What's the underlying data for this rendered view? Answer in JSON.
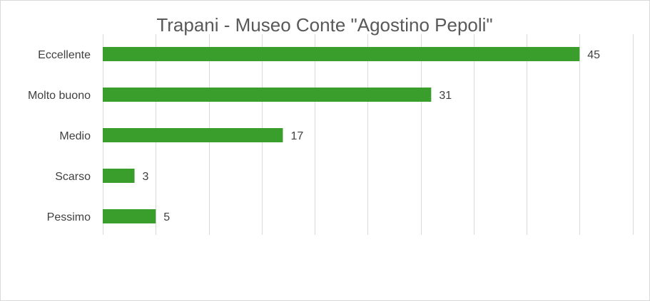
{
  "chart_data": {
    "type": "bar",
    "orientation": "horizontal",
    "title": "Trapani - Museo Conte \"Agostino Pepoli\"",
    "categories": [
      "Eccellente",
      "Molto buono",
      "Medio",
      "Scarso",
      "Pessimo"
    ],
    "values": [
      45,
      31,
      17,
      3,
      5
    ],
    "xlim": [
      0,
      50
    ],
    "grid": true,
    "data_labels": true,
    "bar_color": "#3a9e2c"
  }
}
